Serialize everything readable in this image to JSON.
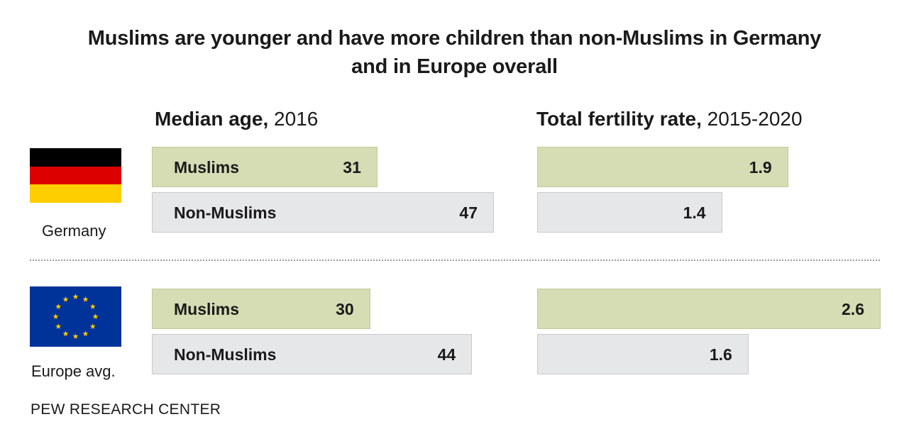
{
  "title_line1": "Muslims are younger and have more children than non-Muslims in Germany",
  "title_line2": "and in Europe overall",
  "columns": {
    "median_age": {
      "label": "Median age,",
      "sub": "2016"
    },
    "fertility": {
      "label": "Total fertility rate,",
      "sub": "2015-2020"
    }
  },
  "groups": [
    {
      "country": "Germany",
      "flag": "germany-flag"
    },
    {
      "country": "Europe avg.",
      "flag": "eu-flag"
    }
  ],
  "source": "PEW RESEARCH CENTER",
  "colors": {
    "muslim_bar": "#d6dcb3",
    "non_muslim_bar": "#e6e7e9",
    "germany_black": "#000000",
    "germany_red": "#dd0000",
    "germany_gold": "#ffce00",
    "eu_blue": "#003399",
    "eu_star": "#ffcc00"
  },
  "chart_data": [
    {
      "type": "bar",
      "title": "Median age, 2016",
      "categories": [
        "Germany",
        "Europe avg."
      ],
      "series": [
        {
          "name": "Muslims",
          "values": [
            31,
            30
          ],
          "labels": [
            "31",
            "30"
          ]
        },
        {
          "name": "Non-Muslims",
          "values": [
            47,
            44
          ],
          "labels": [
            "47",
            "44"
          ]
        }
      ],
      "xlim": [
        0,
        47
      ]
    },
    {
      "type": "bar",
      "title": "Total fertility rate, 2015-2020",
      "categories": [
        "Germany",
        "Europe avg."
      ],
      "series": [
        {
          "name": "Muslims",
          "values": [
            1.9,
            2.6
          ],
          "labels": [
            "1.9",
            "2.6"
          ]
        },
        {
          "name": "Non-Muslims",
          "values": [
            1.4,
            1.6
          ],
          "labels": [
            "1.4",
            "1.6"
          ]
        }
      ],
      "xlim": [
        0,
        2.6
      ]
    }
  ]
}
